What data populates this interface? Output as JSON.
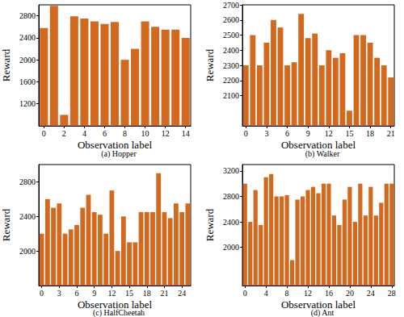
{
  "chart_data": [
    {
      "type": "bar",
      "title": "(a) Hopper",
      "x_label": "Observation label",
      "y_label": "Reward",
      "categories": [
        "0",
        null,
        "2",
        null,
        "4",
        null,
        "6",
        null,
        "8",
        null,
        "10",
        null,
        "12",
        null,
        "14"
      ],
      "values": [
        2580,
        2980,
        1000,
        2790,
        2750,
        2700,
        2650,
        2690,
        2000,
        2200,
        2700,
        2600,
        2550,
        2550,
        2400
      ],
      "color": "#d2691e",
      "ylim": [
        800,
        3000
      ],
      "yticks": [
        1200,
        1600,
        2000,
        2400,
        2800
      ],
      "grid": false
    },
    {
      "type": "bar",
      "title": "(b) Walker",
      "x_label": "Observation label",
      "y_label": "Reward",
      "categories": [
        "0",
        null,
        null,
        "3",
        null,
        null,
        "6",
        null,
        null,
        "9",
        null,
        null,
        "12",
        null,
        null,
        "15",
        null,
        null,
        "18",
        null,
        null,
        "21"
      ],
      "values": [
        2300,
        2500,
        2300,
        2450,
        2600,
        2550,
        2300,
        2320,
        2640,
        2480,
        2510,
        2300,
        2400,
        2350,
        2380,
        2000,
        2500,
        2500,
        2450,
        2350,
        2300,
        2220
      ],
      "color": "#d2691e",
      "ylim": [
        1900,
        2700
      ],
      "yticks": [
        2100,
        2200,
        2300,
        2400,
        2500,
        2600,
        2700
      ],
      "grid": false
    },
    {
      "type": "bar",
      "title": "(c) HalfCheetah",
      "x_label": "Observation label",
      "y_label": "Reward",
      "categories": [
        "0",
        null,
        null,
        "3",
        null,
        null,
        "6",
        null,
        null,
        "9",
        null,
        null,
        "12",
        null,
        null,
        "15",
        null,
        null,
        "18",
        null,
        null,
        "21",
        null,
        null,
        "24",
        null
      ],
      "values": [
        2200,
        2600,
        2500,
        2550,
        2200,
        2250,
        2300,
        2500,
        2650,
        2450,
        2420,
        2200,
        2700,
        2000,
        2400,
        2100,
        2100,
        2450,
        2450,
        2450,
        2900,
        2450,
        2380,
        2550,
        2450,
        2550
      ],
      "color": "#d2691e",
      "ylim": [
        1600,
        3000
      ],
      "yticks": [
        2000,
        2400,
        2800
      ],
      "grid": false
    },
    {
      "type": "bar",
      "title": "(d) Ant",
      "x_label": "Observation label",
      "y_label": "Reward",
      "categories": [
        "0",
        null,
        null,
        null,
        "4",
        null,
        null,
        null,
        "8",
        null,
        null,
        null,
        "12",
        null,
        null,
        null,
        "16",
        null,
        null,
        null,
        "20",
        null,
        null,
        null,
        "24",
        null,
        null,
        null,
        "28"
      ],
      "values": [
        3000,
        2400,
        2900,
        2350,
        3100,
        3150,
        2800,
        2800,
        2820,
        1800,
        2750,
        2800,
        2900,
        2950,
        2850,
        3000,
        3000,
        2500,
        2350,
        2750,
        2950,
        2400,
        3000,
        2500,
        2950,
        2500,
        2700,
        3000,
        3000
      ],
      "color": "#d2691e",
      "ylim": [
        1400,
        3300
      ],
      "yticks": [
        2000,
        2400,
        2800,
        3200
      ],
      "grid": false
    }
  ]
}
